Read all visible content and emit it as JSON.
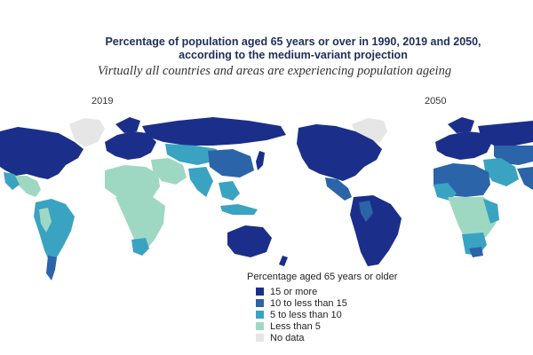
{
  "title_line1": "Percentage of population aged 65 years or over in 1990, 2019 and 2050,",
  "title_line2": "according to the medium-variant projection",
  "subtitle": "Virtually all countries and areas are experiencing population ageing",
  "panels": [
    {
      "label": "2019"
    },
    {
      "label": "2050"
    }
  ],
  "legend": {
    "title": "Percentage aged 65 years or older",
    "items": [
      {
        "label": "15 or more",
        "color": "#1b2f8a"
      },
      {
        "label": "10 to less than 15",
        "color": "#2b64a8"
      },
      {
        "label": "5 to less than 10",
        "color": "#3aa3c2"
      },
      {
        "label": "Less than 5",
        "color": "#9fd8c2"
      },
      {
        "label": "No data",
        "color": "#e6e6e6"
      }
    ]
  }
}
